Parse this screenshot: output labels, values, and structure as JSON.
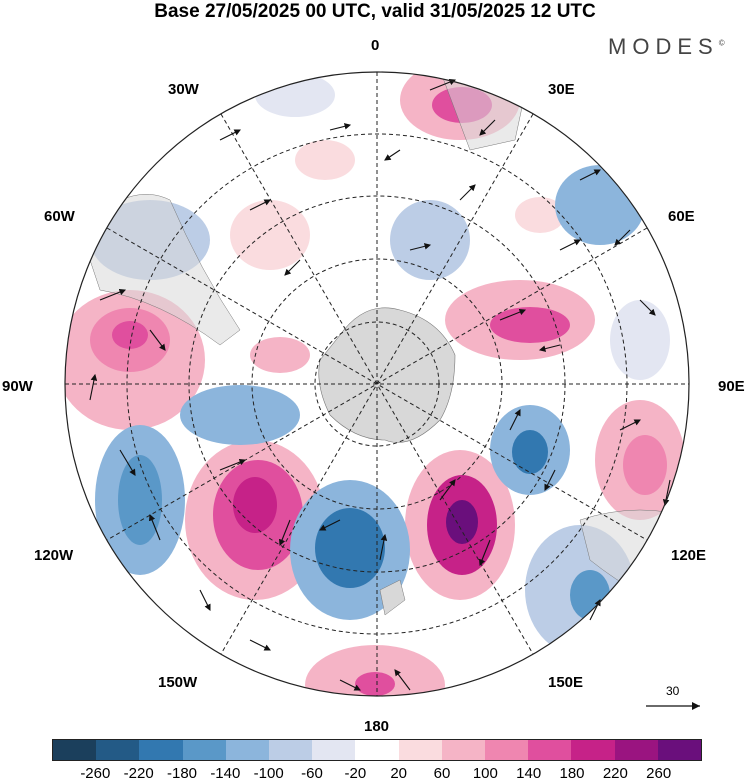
{
  "title": "Base 27/05/2025 00 UTC, valid 31/05/2025 12 UTC",
  "brand": "MODES",
  "brand_mark": "©",
  "longitude_labels": {
    "lon0": "0",
    "lon30e": "30E",
    "lon60e": "60E",
    "lon90e": "90E",
    "lon120e": "120E",
    "lon150e": "150E",
    "lon180": "180",
    "lon150w": "150W",
    "lon120w": "120W",
    "lon90w": "90W",
    "lon60w": "60W",
    "lon30w": "30W"
  },
  "reference_vector": {
    "label": "30"
  },
  "colorbar": {
    "colors": [
      "#1b3f5c",
      "#235a86",
      "#3278b0",
      "#5a98c8",
      "#8cb5dc",
      "#bccde6",
      "#e3e6f2",
      "#ffffff",
      "#fadcdf",
      "#f5b4c6",
      "#ef86b0",
      "#e04f9e",
      "#c62288",
      "#9a1480",
      "#6a0f7c"
    ],
    "ticks": [
      "-260",
      "-220",
      "-180",
      "-140",
      "-100",
      "-60",
      "-20",
      "20",
      "60",
      "100",
      "140",
      "180",
      "220",
      "260"
    ]
  },
  "colors": {
    "land": "#d8d8d8",
    "grid": "#222222",
    "wind": "#111111"
  }
}
